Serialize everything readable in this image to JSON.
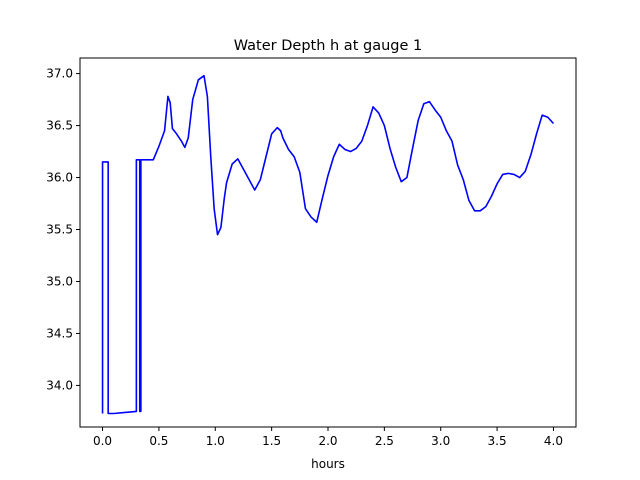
{
  "chart_data": {
    "type": "line",
    "title": "Water Depth h at gauge 1",
    "xlabel": "hours",
    "ylabel": "",
    "xlim": [
      -0.2,
      4.2
    ],
    "ylim": [
      33.6,
      37.15
    ],
    "xticks": [
      0.0,
      0.5,
      1.0,
      1.5,
      2.0,
      2.5,
      3.0,
      3.5,
      4.0
    ],
    "xtick_labels": [
      "0.0",
      "0.5",
      "1.0",
      "1.5",
      "2.0",
      "2.5",
      "3.0",
      "3.5",
      "4.0"
    ],
    "yticks": [
      34.0,
      34.5,
      35.0,
      35.5,
      36.0,
      36.5,
      37.0
    ],
    "ytick_labels": [
      "34.0",
      "34.5",
      "35.0",
      "35.5",
      "36.0",
      "36.5",
      "37.0"
    ],
    "grid": false,
    "legend": "none",
    "series": [
      {
        "color": "#0000ff",
        "x": [
          0.0,
          0.0,
          0.05,
          0.05,
          0.1,
          0.2,
          0.3,
          0.3,
          0.31,
          0.33,
          0.33,
          0.34,
          0.34,
          0.35,
          0.35,
          0.4,
          0.45,
          0.5,
          0.55,
          0.58,
          0.6,
          0.62,
          0.65,
          0.7,
          0.73,
          0.76,
          0.8,
          0.85,
          0.9,
          0.93,
          0.96,
          0.99,
          1.02,
          1.05,
          1.08,
          1.1,
          1.15,
          1.2,
          1.25,
          1.3,
          1.35,
          1.4,
          1.45,
          1.5,
          1.55,
          1.58,
          1.6,
          1.65,
          1.7,
          1.75,
          1.8,
          1.85,
          1.9,
          1.95,
          2.0,
          2.05,
          2.1,
          2.15,
          2.2,
          2.25,
          2.3,
          2.35,
          2.4,
          2.45,
          2.5,
          2.55,
          2.6,
          2.65,
          2.7,
          2.75,
          2.8,
          2.85,
          2.9,
          2.95,
          3.0,
          3.05,
          3.1,
          3.15,
          3.2,
          3.25,
          3.3,
          3.35,
          3.4,
          3.45,
          3.5,
          3.55,
          3.6,
          3.65,
          3.7,
          3.75,
          3.8,
          3.85,
          3.9,
          3.95,
          4.0
        ],
        "y": [
          33.73,
          36.15,
          36.15,
          33.73,
          33.73,
          33.74,
          33.75,
          36.17,
          36.17,
          36.17,
          33.75,
          33.75,
          36.17,
          36.17,
          36.17,
          36.17,
          36.17,
          36.3,
          36.45,
          36.78,
          36.72,
          36.47,
          36.43,
          36.35,
          36.29,
          36.38,
          36.75,
          36.94,
          36.98,
          36.78,
          36.2,
          35.7,
          35.45,
          35.52,
          35.8,
          35.95,
          36.13,
          36.18,
          36.08,
          35.98,
          35.88,
          35.98,
          36.2,
          36.42,
          36.48,
          36.45,
          36.38,
          36.27,
          36.2,
          36.05,
          35.7,
          35.62,
          35.57,
          35.8,
          36.02,
          36.2,
          36.32,
          36.27,
          36.25,
          36.28,
          36.35,
          36.5,
          36.68,
          36.62,
          36.5,
          36.28,
          36.1,
          35.96,
          36.0,
          36.28,
          36.55,
          36.71,
          36.73,
          36.65,
          36.58,
          36.45,
          36.35,
          36.12,
          35.98,
          35.78,
          35.68,
          35.68,
          35.72,
          35.82,
          35.94,
          36.03,
          36.04,
          36.03,
          36.0,
          36.06,
          36.22,
          36.42,
          36.6,
          36.58,
          36.52
        ]
      }
    ]
  }
}
